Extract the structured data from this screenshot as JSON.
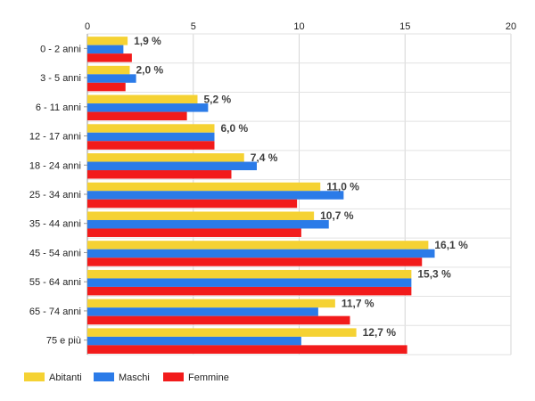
{
  "chart_data": {
    "type": "bar",
    "orientation": "horizontal",
    "title": "",
    "xlabel": "",
    "ylabel": "",
    "xlim": [
      0,
      20
    ],
    "x_ticks": [
      0,
      5,
      10,
      15,
      20
    ],
    "x_axis_position": "top",
    "grid": true,
    "legend_position": "bottom-left",
    "categories": [
      "0 - 2 anni",
      "3 - 5 anni",
      "6 - 11 anni",
      "12 - 17 anni",
      "18 - 24 anni",
      "25 - 34 anni",
      "35 - 44 anni",
      "45 - 54 anni",
      "55 - 64 anni",
      "65 - 74 anni",
      "75 e più"
    ],
    "series": [
      {
        "name": "Abitanti",
        "color": "#F5D233",
        "values": [
          1.9,
          2.0,
          5.2,
          6.0,
          7.4,
          11.0,
          10.7,
          16.1,
          15.3,
          11.7,
          12.7
        ],
        "labels": [
          "1,9 %",
          "2,0 %",
          "5,2 %",
          "6,0 %",
          "7,4 %",
          "11,0 %",
          "10,7 %",
          "16,1 %",
          "15,3 %",
          "11,7 %",
          "12,7 %"
        ]
      },
      {
        "name": "Maschi",
        "color": "#2B7BE8",
        "values": [
          1.7,
          2.3,
          5.7,
          6.0,
          8.0,
          12.1,
          11.4,
          16.4,
          15.3,
          10.9,
          10.1
        ]
      },
      {
        "name": "Femmine",
        "color": "#F21B1B",
        "values": [
          2.1,
          1.8,
          4.7,
          6.0,
          6.8,
          9.9,
          10.1,
          15.8,
          15.3,
          12.4,
          15.1
        ]
      }
    ]
  }
}
